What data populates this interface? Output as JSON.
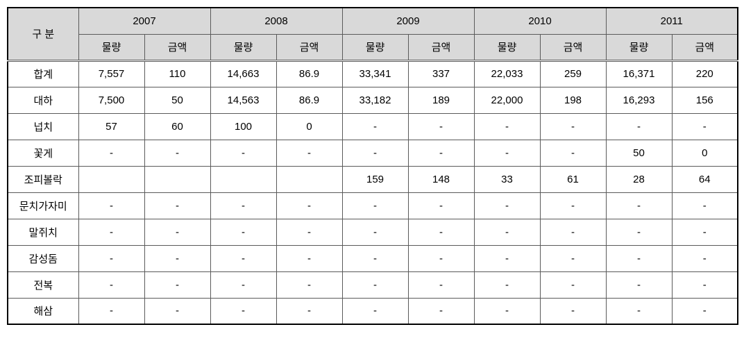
{
  "table": {
    "type": "table",
    "category_header": "구 분",
    "years": [
      "2007",
      "2008",
      "2009",
      "2010",
      "2011"
    ],
    "subheaders": [
      "물량",
      "금액"
    ],
    "rows": [
      {
        "label": "합계",
        "cells": [
          "7,557",
          "110",
          "14,663",
          "86.9",
          "33,341",
          "337",
          "22,033",
          "259",
          "16,371",
          "220"
        ]
      },
      {
        "label": "대하",
        "cells": [
          "7,500",
          "50",
          "14,563",
          "86.9",
          "33,182",
          "189",
          "22,000",
          "198",
          "16,293",
          "156"
        ]
      },
      {
        "label": "넙치",
        "cells": [
          "57",
          "60",
          "100",
          "0",
          "-",
          "-",
          "-",
          "-",
          "-",
          "-"
        ]
      },
      {
        "label": "꽃게",
        "cells": [
          "-",
          "-",
          "-",
          "-",
          "-",
          "-",
          "-",
          "-",
          "50",
          "0"
        ]
      },
      {
        "label": "조피볼락",
        "cells": [
          "",
          "",
          "",
          "",
          "159",
          "148",
          "33",
          "61",
          "28",
          "64"
        ]
      },
      {
        "label": "문치가자미",
        "cells": [
          "-",
          "-",
          "-",
          "-",
          "-",
          "-",
          "-",
          "-",
          "-",
          "-"
        ]
      },
      {
        "label": "말쥐치",
        "cells": [
          "-",
          "-",
          "-",
          "-",
          "-",
          "-",
          "-",
          "-",
          "-",
          "-"
        ]
      },
      {
        "label": "감성돔",
        "cells": [
          "-",
          "-",
          "-",
          "-",
          "-",
          "-",
          "-",
          "-",
          "-",
          "-"
        ]
      },
      {
        "label": "전복",
        "cells": [
          "-",
          "-",
          "-",
          "-",
          "-",
          "-",
          "-",
          "-",
          "-",
          "-"
        ]
      },
      {
        "label": "해삼",
        "cells": [
          "-",
          "-",
          "-",
          "-",
          "-",
          "-",
          "-",
          "-",
          "-",
          "-"
        ]
      }
    ],
    "header_bg": "#d9d9d9",
    "border_color": "#5a5a5a",
    "outer_border_color": "#000000",
    "font_size": 15
  }
}
